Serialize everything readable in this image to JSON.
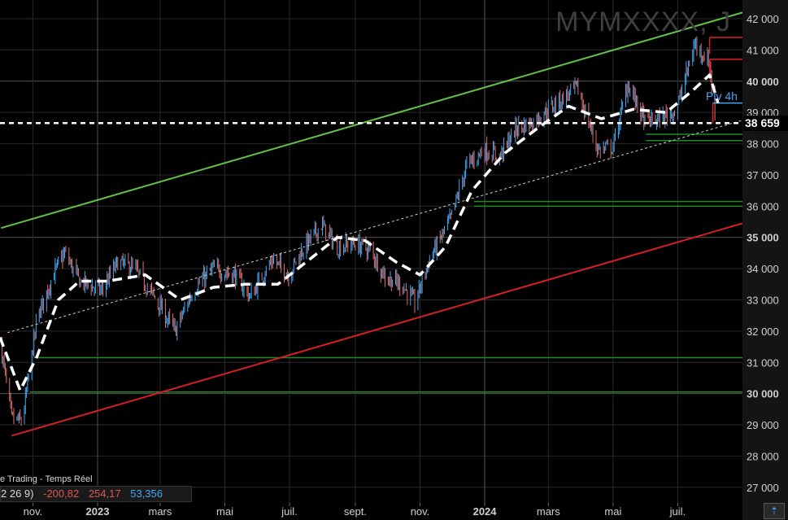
{
  "watermark": "MYMXXXX, J",
  "source_text": "e Trading - Temps Réel",
  "indicator": {
    "params": "2 26 9)",
    "v1": "-200,82",
    "v2": "254,17",
    "v3": "53,356",
    "color1": "#e05555",
    "color2": "#e05555",
    "color3": "#3fa9f5"
  },
  "current_price_label": "38 659",
  "pivot_label": "Piv 4h",
  "scroll_icon": "scroll-to-end-icon",
  "chart_data": {
    "type": "candlestick",
    "title": "MYMXXXX, J",
    "ylim": [
      26500,
      42600
    ],
    "y_ticks": [
      {
        "v": 27000,
        "label": "27 000"
      },
      {
        "v": 28000,
        "label": "28 000"
      },
      {
        "v": 29000,
        "label": "29 000"
      },
      {
        "v": 30000,
        "label": "30 000"
      },
      {
        "v": 31000,
        "label": "31 000"
      },
      {
        "v": 32000,
        "label": "32 000"
      },
      {
        "v": 33000,
        "label": "33 000"
      },
      {
        "v": 34000,
        "label": "34 000"
      },
      {
        "v": 35000,
        "label": "35 000"
      },
      {
        "v": 36000,
        "label": "36 000"
      },
      {
        "v": 37000,
        "label": "37 000"
      },
      {
        "v": 38000,
        "label": "38 000"
      },
      {
        "v": 39000,
        "label": "39 000"
      },
      {
        "v": 40000,
        "label": "40 000"
      },
      {
        "v": 41000,
        "label": "41 000"
      },
      {
        "v": 42000,
        "label": "42 000"
      }
    ],
    "bold_ticks": [
      30000,
      35000,
      40000
    ],
    "x_range": [
      "2022-10-01",
      "2024-08-31"
    ],
    "x_ticks": [
      {
        "date": "2022-11-01",
        "label": "nov."
      },
      {
        "date": "2023-01-01",
        "label": "2023"
      },
      {
        "date": "2023-03-01",
        "label": "mars"
      },
      {
        "date": "2023-05-01",
        "label": "mai"
      },
      {
        "date": "2023-07-01",
        "label": "juil."
      },
      {
        "date": "2023-09-01",
        "label": "sept."
      },
      {
        "date": "2023-11-01",
        "label": "nov."
      },
      {
        "date": "2024-01-01",
        "label": "2024"
      },
      {
        "date": "2024-03-01",
        "label": "mars"
      },
      {
        "date": "2024-05-01",
        "label": "mai"
      },
      {
        "date": "2024-07-01",
        "label": "juil."
      }
    ],
    "bold_x_ticks": [
      "2023-01-01",
      "2024-01-01"
    ],
    "price_anchors": [
      [
        "2022-10-01",
        31700
      ],
      [
        "2022-10-12",
        29200
      ],
      [
        "2022-10-22",
        29100
      ],
      [
        "2022-11-05",
        32400
      ],
      [
        "2022-11-20",
        33800
      ],
      [
        "2022-12-01",
        34500
      ],
      [
        "2022-12-15",
        33600
      ],
      [
        "2023-01-05",
        33300
      ],
      [
        "2023-01-20",
        34200
      ],
      [
        "2023-02-05",
        34000
      ],
      [
        "2023-02-25",
        33000
      ],
      [
        "2023-03-15",
        32000
      ],
      [
        "2023-04-01",
        33300
      ],
      [
        "2023-04-20",
        34000
      ],
      [
        "2023-05-10",
        33800
      ],
      [
        "2023-05-25",
        33100
      ],
      [
        "2023-06-15",
        34300
      ],
      [
        "2023-06-30",
        33800
      ],
      [
        "2023-07-15",
        34700
      ],
      [
        "2023-07-31",
        35400
      ],
      [
        "2023-08-15",
        34700
      ],
      [
        "2023-08-31",
        34800
      ],
      [
        "2023-09-15",
        34600
      ],
      [
        "2023-09-30",
        33700
      ],
      [
        "2023-10-15",
        33500
      ],
      [
        "2023-10-27",
        32900
      ],
      [
        "2023-11-10",
        34300
      ],
      [
        "2023-11-30",
        35600
      ],
      [
        "2023-12-15",
        37300
      ],
      [
        "2023-12-31",
        37800
      ],
      [
        "2024-01-15",
        37600
      ],
      [
        "2024-01-31",
        38500
      ],
      [
        "2024-02-15",
        38700
      ],
      [
        "2024-03-01",
        39100
      ],
      [
        "2024-03-28",
        39800
      ],
      [
        "2024-04-17",
        37800
      ],
      [
        "2024-05-01",
        37900
      ],
      [
        "2024-05-15",
        39900
      ],
      [
        "2024-05-31",
        38700
      ],
      [
        "2024-06-15",
        38800
      ],
      [
        "2024-06-30",
        39100
      ],
      [
        "2024-07-17",
        41200
      ],
      [
        "2024-07-31",
        40600
      ],
      [
        "2024-08-05",
        38700
      ]
    ],
    "moving_average": [
      [
        "2022-10-01",
        31800
      ],
      [
        "2022-10-20",
        30100
      ],
      [
        "2022-11-05",
        31200
      ],
      [
        "2022-11-25",
        33000
      ],
      [
        "2022-12-15",
        33600
      ],
      [
        "2023-01-10",
        33600
      ],
      [
        "2023-02-15",
        33800
      ],
      [
        "2023-03-20",
        33000
      ],
      [
        "2023-04-20",
        33400
      ],
      [
        "2023-05-20",
        33500
      ],
      [
        "2023-06-20",
        33500
      ],
      [
        "2023-07-20",
        34300
      ],
      [
        "2023-08-15",
        35000
      ],
      [
        "2023-09-10",
        34900
      ],
      [
        "2023-10-10",
        34200
      ],
      [
        "2023-11-01",
        33800
      ],
      [
        "2023-11-25",
        34700
      ],
      [
        "2023-12-20",
        36500
      ],
      [
        "2024-01-20",
        37700
      ],
      [
        "2024-02-20",
        38500
      ],
      [
        "2024-03-20",
        39200
      ],
      [
        "2024-04-20",
        38800
      ],
      [
        "2024-05-20",
        39100
      ],
      [
        "2024-06-20",
        39000
      ],
      [
        "2024-07-15",
        39700
      ],
      [
        "2024-07-31",
        40200
      ],
      [
        "2024-08-08",
        39300
      ]
    ],
    "trendlines": [
      {
        "name": "upper-channel",
        "color": "#62c248",
        "p1": [
          "2022-10-02",
          35300
        ],
        "p2": [
          "2024-08-31",
          42200
        ]
      },
      {
        "name": "lower-channel",
        "color": "#d42020",
        "p1": [
          "2022-10-12",
          28650
        ],
        "p2": [
          "2024-08-31",
          35450
        ]
      },
      {
        "name": "mid-trend",
        "color": "#d0d0d0",
        "dashed": true,
        "p1": [
          "2022-10-08",
          31950
        ],
        "p2": [
          "2024-08-31",
          38750
        ]
      }
    ],
    "current_price": 38659,
    "support_levels": [
      {
        "value": 30050,
        "from": "2022-10-29",
        "color": "#1f8a1f"
      },
      {
        "value": 31150,
        "from": "2022-11-02",
        "color": "#1f8a1f"
      },
      {
        "value": 36000,
        "from": "2023-12-22",
        "color": "#1f8a1f"
      },
      {
        "value": 36150,
        "from": "2023-12-22",
        "color": "#1f8a1f"
      },
      {
        "value": 38100,
        "from": "2024-06-01",
        "color": "#1f8a1f"
      },
      {
        "value": 38300,
        "from": "2024-06-01",
        "color": "#1f8a1f"
      }
    ],
    "resistance_levels": [
      {
        "value": 40700,
        "from": "2024-07-31",
        "color": "#e02020"
      },
      {
        "value": 41400,
        "from": "2024-07-31",
        "color": "#e02020"
      }
    ],
    "pivot_level": {
      "value": 39300,
      "from": "2024-08-03",
      "color": "#3fa9f5"
    },
    "colors": {
      "up": "#3fa9f5",
      "down": "#e26d6d",
      "grid": "#2a2a2a",
      "tick_text": "#cfcfcf",
      "axis_bg": "#141414"
    }
  }
}
